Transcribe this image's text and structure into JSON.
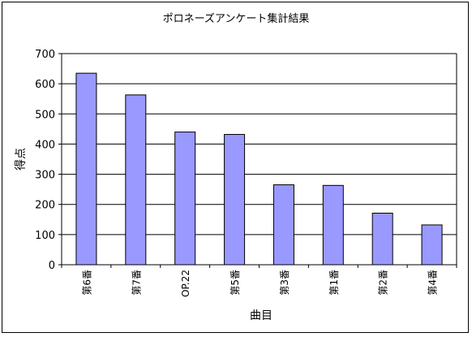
{
  "chart_data": {
    "type": "bar",
    "title": "ポロネーズアンケート集計結果",
    "xlabel": "曲目",
    "ylabel": "得点",
    "categories": [
      "第6番",
      "第7番",
      "OP.22",
      "第5番",
      "第3番",
      "第1番",
      "第2番",
      "第4番"
    ],
    "values": [
      635,
      563,
      440,
      432,
      265,
      263,
      171,
      132
    ],
    "ylim": [
      0,
      700
    ],
    "yticks": [
      0,
      100,
      200,
      300,
      400,
      500,
      600,
      700
    ],
    "grid": true,
    "legend": "none",
    "colors": {
      "bar_fill": "#9999ff",
      "bar_stroke": "#000000",
      "plot_background": "#ffffff",
      "gridline": "#000000"
    }
  }
}
